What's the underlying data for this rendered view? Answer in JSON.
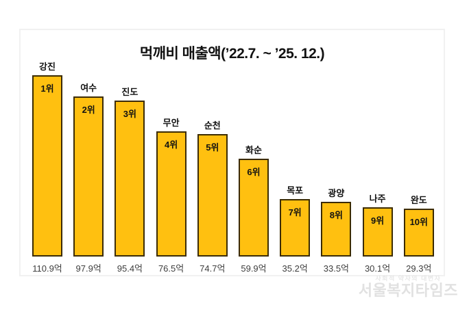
{
  "chart_data": {
    "type": "bar",
    "title": "먹깨비 매출액(’22.7. ~ ’25. 12.)",
    "categories": [
      "강진",
      "여수",
      "진도",
      "무안",
      "순천",
      "화순",
      "목포",
      "광양",
      "나주",
      "완도"
    ],
    "values": [
      110.9,
      97.9,
      95.4,
      76.5,
      74.7,
      59.9,
      35.2,
      33.5,
      30.1,
      29.3
    ],
    "rank_labels": [
      "1위",
      "2위",
      "3위",
      "4위",
      "5위",
      "6위",
      "7위",
      "8위",
      "9위",
      "10위"
    ],
    "value_labels": [
      "110.9억",
      "97.9억",
      "95.4억",
      "76.5억",
      "74.7억",
      "59.9억",
      "35.2억",
      "33.5억",
      "30.1억",
      "29.3억"
    ],
    "unit": "억",
    "ylim": [
      0,
      120
    ],
    "grid": false,
    "axes_shown": false,
    "legend": null,
    "bar_fill_color": "#FFC010",
    "bar_border_color": "#3B2B00"
  },
  "watermark": {
    "tagline": "사회적 약자의 대변자",
    "brand": "서울복지타임즈"
  },
  "colors": {
    "background": "#ffffff",
    "frame_border": "#f1f1f1",
    "label_text": "#111111",
    "value_text": "#3d3d3d",
    "watermark_text": "#e1e1e1"
  }
}
